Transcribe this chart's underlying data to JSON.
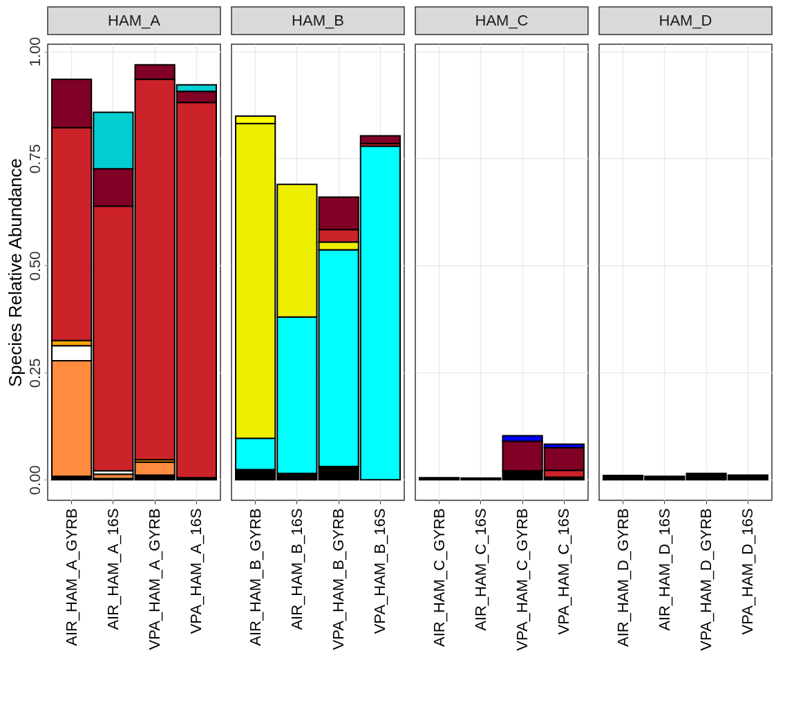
{
  "chart_data": [
    {
      "type": "bar",
      "stacked": true,
      "title": "HAM_A",
      "ylabel": "Species Relative Abundance",
      "categories": [
        "AIR_HAM_A_GYRB",
        "AIR_HAM_A_16S",
        "VPA_HAM_A_GYRB",
        "VPA_HAM_A_16S"
      ],
      "ylim": [
        -0.048,
        1.017
      ],
      "yticks": [
        {
          "value": 0,
          "label": "0.00"
        },
        {
          "value": 0.25,
          "label": "0.25"
        },
        {
          "value": 0.5,
          "label": "0.50"
        },
        {
          "value": 0.75,
          "label": "0.75"
        },
        {
          "value": 1,
          "label": "1.00"
        }
      ],
      "grid": true,
      "legend": false,
      "series": [
        {
          "color": "#000000",
          "values": [
            0.008,
            0.003,
            0.011,
            0.005
          ]
        },
        {
          "color": "#ff8c3f",
          "values": [
            0.27,
            0.01,
            0.03,
            null
          ]
        },
        {
          "color": "#ffffff",
          "values": [
            0.035,
            0.008,
            null,
            null
          ]
        },
        {
          "color": "#ffa500",
          "values": [
            0.012,
            null,
            0.006,
            null
          ]
        },
        {
          "color": "#cc2229",
          "values": [
            0.497,
            0.618,
            0.888,
            0.876
          ]
        },
        {
          "color": "#800026",
          "values": [
            0.113,
            0.087,
            0.034,
            0.026
          ]
        },
        {
          "color": "#00ced1",
          "values": [
            null,
            0.132,
            null,
            0.015
          ]
        }
      ]
    },
    {
      "type": "bar",
      "stacked": true,
      "title": "HAM_B",
      "categories": [
        "AIR_HAM_B_GYRB",
        "AIR_HAM_B_16S",
        "VPA_HAM_B_GYRB",
        "VPA_HAM_B_16S"
      ],
      "ylim": [
        -0.048,
        1.017
      ],
      "yticks": [
        0,
        0.25,
        0.5,
        0.75,
        1
      ],
      "grid": true,
      "legend": false,
      "tick_labels": "x",
      "series": [
        {
          "color": "#000000",
          "values": [
            0.024,
            0.015,
            0.031,
            null
          ]
        },
        {
          "color": "#00ffff",
          "values": [
            0.073,
            0.365,
            0.506,
            0.779
          ]
        },
        {
          "color": "#eeee00",
          "values": [
            0.735,
            0.31,
            0.018,
            null
          ]
        },
        {
          "color": "#ffff00",
          "values": [
            0.017,
            null,
            null,
            null
          ]
        },
        {
          "color": "#cc2229",
          "values": [
            null,
            null,
            0.029,
            0.006
          ]
        },
        {
          "color": "#800026",
          "values": [
            null,
            null,
            0.076,
            0.018
          ]
        }
      ]
    },
    {
      "type": "bar",
      "stacked": true,
      "title": "HAM_C",
      "categories": [
        "AIR_HAM_C_GYRB",
        "AIR_HAM_C_16S",
        "VPA_HAM_C_GYRB",
        "VPA_HAM_C_16S"
      ],
      "ylim": [
        -0.048,
        1.017
      ],
      "yticks": [
        0,
        0.25,
        0.5,
        0.75,
        1
      ],
      "grid": true,
      "legend": false,
      "tick_labels": "x",
      "series": [
        {
          "color": "#000000",
          "values": [
            0.005,
            0.004,
            0.021,
            0.006
          ]
        },
        {
          "color": "#cc2229",
          "values": [
            null,
            null,
            null,
            0.016
          ]
        },
        {
          "color": "#800026",
          "values": [
            null,
            null,
            0.069,
            0.053
          ]
        },
        {
          "color": "#0000ff",
          "values": [
            null,
            null,
            0.013,
            0.008
          ]
        }
      ]
    },
    {
      "type": "bar",
      "stacked": true,
      "title": "HAM_D",
      "categories": [
        "AIR_HAM_D_GYRB",
        "AIR_HAM_D_16S",
        "VPA_HAM_D_GYRB",
        "VPA_HAM_D_16S"
      ],
      "ylim": [
        -0.048,
        1.017
      ],
      "yticks": [
        0,
        0.25,
        0.5,
        0.75,
        1
      ],
      "grid": true,
      "legend": false,
      "tick_labels": "x",
      "series": [
        {
          "color": "#000000",
          "values": [
            0.01,
            0.008,
            0.015,
            0.011
          ]
        }
      ]
    }
  ]
}
